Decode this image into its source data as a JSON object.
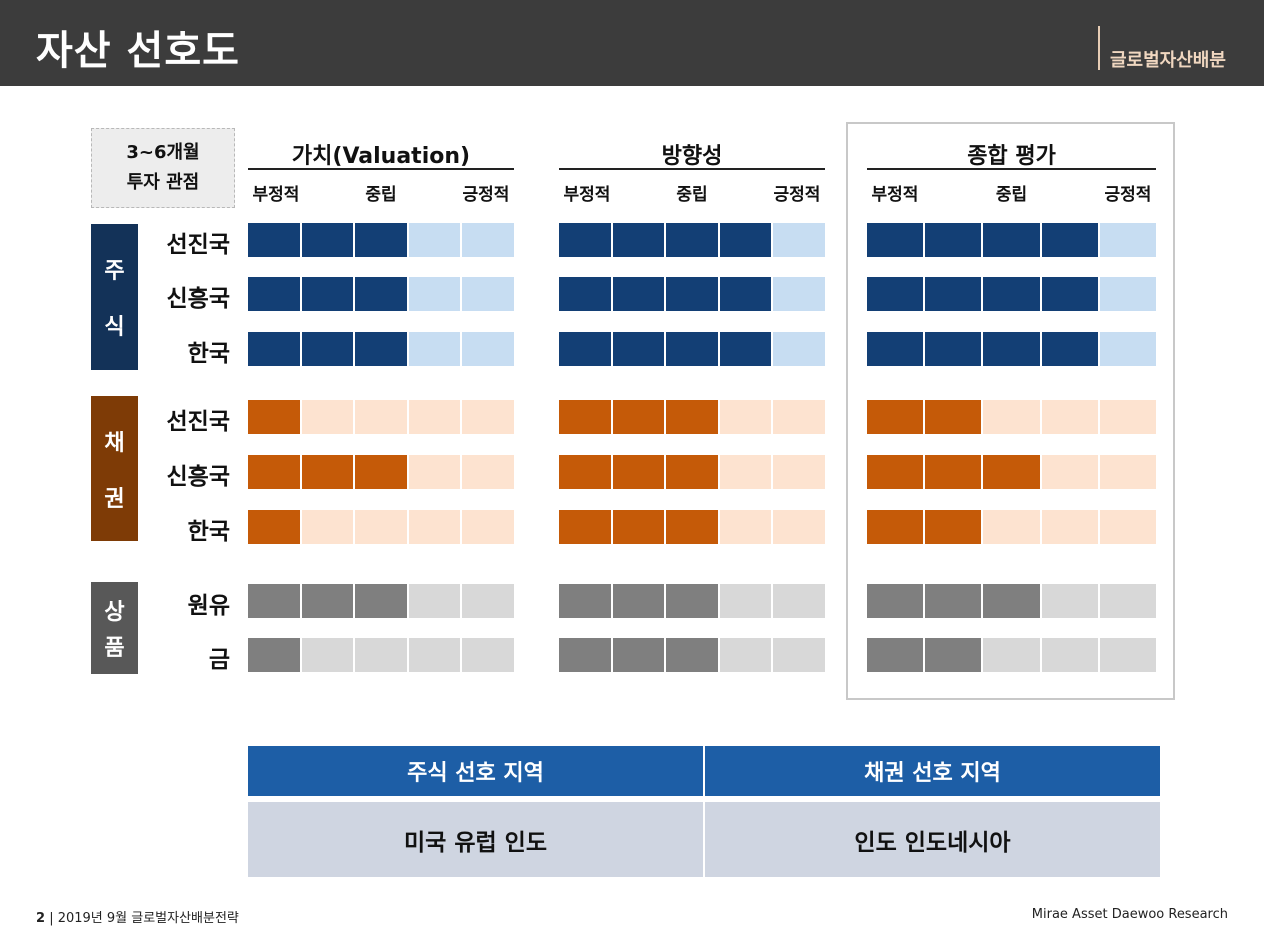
{
  "header": {
    "title": "자산 선호도",
    "section_tag": "글로벌자산배분"
  },
  "horizon": {
    "line1": "3~6개월",
    "line2": "투자 관점"
  },
  "groups": [
    {
      "title": "가치(Valuation)",
      "scale": [
        "부정적",
        "중립",
        "긍정적"
      ]
    },
    {
      "title": "방향성",
      "scale": [
        "부정적",
        "중립",
        "긍정적"
      ]
    },
    {
      "title": "종합 평가",
      "scale": [
        "부정적",
        "중립",
        "긍정적"
      ]
    }
  ],
  "colors": {
    "equity_filled": "#133f75",
    "equity_empty": "#c7ddf2",
    "bond_filled": "#c55a08",
    "bond_empty": "#fde3d0",
    "commodity_filled": "#7f7f7f",
    "commodity_empty": "#d8d8d8",
    "equity_label": "#133258",
    "bond_label": "#7e3b06",
    "commodity_label": "#585858"
  },
  "categories": [
    {
      "name": "주식",
      "chars": [
        "주",
        "식"
      ],
      "palette": "equity",
      "rows": [
        {
          "label": "선진국",
          "scores": [
            3,
            4,
            4
          ]
        },
        {
          "label": "신흥국",
          "scores": [
            3,
            4,
            4
          ]
        },
        {
          "label": "한국",
          "scores": [
            3,
            4,
            4
          ]
        }
      ]
    },
    {
      "name": "채권",
      "chars": [
        "채",
        "권"
      ],
      "palette": "bond",
      "rows": [
        {
          "label": "선진국",
          "scores": [
            1,
            3,
            2
          ]
        },
        {
          "label": "신흥국",
          "scores": [
            3,
            3,
            3
          ]
        },
        {
          "label": "한국",
          "scores": [
            1,
            3,
            2
          ]
        }
      ]
    },
    {
      "name": "상품",
      "chars": [
        "상",
        "품"
      ],
      "palette": "commodity",
      "rows": [
        {
          "label": "원유",
          "scores": [
            3,
            3,
            3
          ]
        },
        {
          "label": "금",
          "scores": [
            1,
            3,
            2
          ]
        }
      ]
    }
  ],
  "preference": {
    "equity_header": "주식 선호 지역",
    "bond_header": "채권 선호 지역",
    "equity_regions": "미국 유럽 인도",
    "bond_regions": "인도 인도네시아"
  },
  "footer": {
    "page": "2",
    "doc": "2019년 9월 글로벌자산배분전략",
    "source": "Mirae Asset Daewoo Research"
  }
}
